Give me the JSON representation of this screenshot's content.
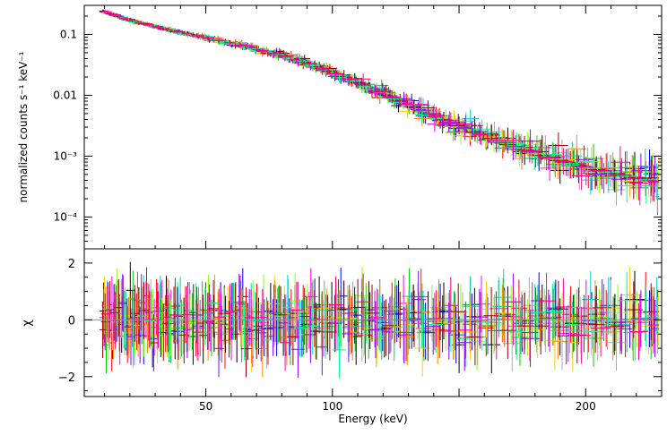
{
  "chart_data": [
    {
      "type": "line",
      "panel": "spectrum",
      "title": "",
      "xlabel": "",
      "ylabel": "normalized counts s⁻¹ keV⁻¹",
      "yscale": "log",
      "xlim": [
        2,
        230
      ],
      "ylim": [
        3e-05,
        0.3
      ],
      "ytick_labels": [
        "0.1",
        "0.01",
        "10⁻³",
        "10⁻⁴"
      ],
      "yticks": [
        0.1,
        0.01,
        0.001,
        0.0001
      ],
      "grid": false,
      "model": {
        "x": [
          8,
          20,
          35,
          50,
          65,
          80,
          95,
          110,
          125,
          140,
          155,
          170,
          185,
          200,
          215,
          228
        ],
        "y": [
          0.25,
          0.17,
          0.12,
          0.088,
          0.065,
          0.045,
          0.029,
          0.016,
          0.0085,
          0.0045,
          0.0026,
          0.0015,
          0.00095,
          0.00065,
          0.00048,
          0.00038
        ]
      },
      "series_colors": [
        "#000000",
        "#ff0000",
        "#00cc00",
        "#0000ff",
        "#00cccc",
        "#ff00ff",
        "#ffcc00",
        "#ff8800",
        "#88ff00",
        "#aaaaaa",
        "#990000",
        "#8800ff",
        "#00ff88",
        "#ff0088"
      ]
    },
    {
      "type": "scatter",
      "panel": "residuals",
      "xlabel": "Energy (keV)",
      "ylabel": "χ",
      "xlim": [
        2,
        230
      ],
      "ylim": [
        -2.7,
        2.5
      ],
      "xticks": [
        50,
        100,
        200
      ],
      "xtick_labels": [
        "50",
        "100",
        "200"
      ],
      "yticks": [
        -2,
        0,
        2
      ],
      "ytick_labels": [
        "−2",
        "0",
        "2"
      ],
      "zero_line": 0,
      "grid": false
    }
  ]
}
